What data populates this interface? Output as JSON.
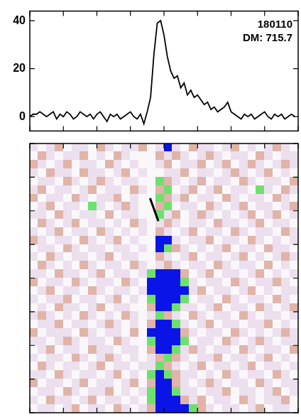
{
  "chart_data": [
    {
      "type": "line",
      "title": "180110",
      "subtitle": "DM: 715.7",
      "color": "#000000",
      "x": [
        0,
        1,
        2,
        3,
        4,
        5,
        6,
        7,
        8,
        9,
        10,
        11,
        12,
        13,
        14,
        15,
        16,
        17,
        18,
        19,
        20,
        21,
        22,
        23,
        24,
        25,
        26,
        27,
        28,
        29,
        30,
        31,
        32,
        33,
        34,
        35,
        36,
        37,
        38,
        39,
        40,
        41,
        42,
        43,
        44,
        45,
        46,
        47,
        48,
        49,
        50,
        51,
        52,
        53,
        54,
        55,
        56,
        57,
        58,
        59,
        60,
        61,
        62,
        63,
        64,
        65,
        66,
        67,
        68,
        69,
        70,
        71,
        72,
        73,
        74,
        75,
        76,
        77,
        78,
        79
      ],
      "values": [
        0,
        1,
        1,
        2,
        1,
        0,
        1,
        2,
        -1,
        1,
        0,
        2,
        1,
        -1,
        0,
        2,
        1,
        0,
        1,
        -1,
        1,
        2,
        0,
        -2,
        1,
        0,
        1,
        -1,
        0,
        1,
        2,
        0,
        -1,
        1,
        -3,
        2,
        8,
        26,
        39,
        40,
        34,
        25,
        19,
        16,
        17,
        12,
        14,
        9,
        11,
        8,
        9,
        7,
        5,
        6,
        3,
        4,
        2,
        3,
        4,
        6,
        2,
        1,
        0,
        -1,
        1,
        0,
        1,
        -1,
        0,
        1,
        2,
        0,
        -1,
        1,
        0,
        1,
        -1,
        0,
        1,
        0
      ],
      "xlim": [
        0,
        80
      ],
      "xticks": [
        0,
        10,
        20,
        30,
        40,
        50,
        60,
        70,
        80
      ],
      "ylim": [
        -6,
        44
      ],
      "yticks": [
        0,
        20,
        40
      ],
      "tick_labels": "y"
    },
    {
      "type": "heatmap",
      "xlim": [
        0,
        80
      ],
      "xticks": [
        0,
        10,
        20,
        30,
        40,
        50,
        60,
        70,
        80
      ],
      "ylim": [
        0,
        32
      ],
      "yticks": [
        0,
        4,
        8,
        12,
        16,
        20,
        24,
        28,
        32
      ],
      "tick_labels": false,
      "cells": [
        [
          1,
          0,
          1,
          2,
          0,
          1,
          1,
          0,
          2,
          1,
          0,
          1,
          1,
          2,
          0,
          1,
          4,
          1,
          0,
          2,
          1,
          1,
          0,
          1,
          2,
          0,
          1,
          0,
          1,
          2,
          1,
          0
        ],
        [
          0,
          2,
          1,
          0,
          1,
          1,
          2,
          0,
          1,
          0,
          2,
          1,
          0,
          0,
          0,
          2,
          1,
          2,
          1,
          0,
          1,
          2,
          1,
          0,
          1,
          1,
          0,
          2,
          1,
          0,
          1,
          1
        ],
        [
          2,
          1,
          0,
          1,
          2,
          0,
          1,
          1,
          0,
          2,
          1,
          0,
          1,
          0,
          0,
          1,
          2,
          0,
          1,
          1,
          2,
          0,
          1,
          2,
          0,
          1,
          2,
          1,
          0,
          1,
          2,
          1
        ],
        [
          1,
          0,
          2,
          1,
          1,
          0,
          2,
          1,
          1,
          0,
          1,
          2,
          0,
          1,
          0,
          0,
          1,
          1,
          2,
          0,
          1,
          1,
          0,
          1,
          2,
          1,
          0,
          1,
          2,
          0,
          1,
          0
        ],
        [
          0,
          1,
          1,
          0,
          2,
          1,
          0,
          1,
          2,
          1,
          0,
          1,
          1,
          0,
          0,
          3,
          2,
          1,
          0,
          1,
          2,
          0,
          1,
          1,
          0,
          2,
          1,
          0,
          1,
          1,
          0,
          2
        ],
        [
          1,
          2,
          0,
          1,
          1,
          0,
          1,
          2,
          0,
          1,
          1,
          0,
          2,
          1,
          0,
          2,
          3,
          0,
          1,
          2,
          0,
          1,
          2,
          0,
          1,
          1,
          0,
          3,
          1,
          0,
          2,
          1
        ],
        [
          2,
          0,
          1,
          1,
          0,
          2,
          1,
          0,
          1,
          1,
          2,
          0,
          1,
          0,
          0,
          3,
          2,
          1,
          2,
          0,
          1,
          1,
          0,
          2,
          1,
          0,
          1,
          1,
          0,
          2,
          1,
          0
        ],
        [
          0,
          1,
          2,
          0,
          1,
          1,
          0,
          3,
          1,
          0,
          1,
          2,
          1,
          0,
          0,
          2,
          3,
          0,
          1,
          1,
          0,
          2,
          1,
          0,
          1,
          2,
          0,
          1,
          1,
          0,
          1,
          2
        ],
        [
          1,
          1,
          0,
          2,
          1,
          0,
          1,
          1,
          0,
          2,
          0,
          1,
          1,
          0,
          0,
          3,
          1,
          2,
          0,
          1,
          2,
          1,
          0,
          1,
          0,
          1,
          2,
          0,
          1,
          2,
          0,
          1
        ],
        [
          0,
          2,
          1,
          0,
          1,
          2,
          0,
          1,
          1,
          0,
          1,
          0,
          2,
          1,
          0,
          1,
          2,
          1,
          0,
          1,
          1,
          0,
          2,
          1,
          1,
          0,
          1,
          2,
          0,
          1,
          1,
          0
        ],
        [
          1,
          0,
          1,
          2,
          0,
          1,
          1,
          0,
          2,
          1,
          0,
          1,
          0,
          1,
          0,
          2,
          1,
          0,
          1,
          2,
          0,
          1,
          1,
          0,
          2,
          1,
          0,
          1,
          1,
          0,
          2,
          1
        ],
        [
          2,
          1,
          0,
          1,
          1,
          0,
          2,
          1,
          0,
          1,
          2,
          0,
          1,
          0,
          0,
          4,
          4,
          1,
          0,
          1,
          1,
          2,
          0,
          1,
          1,
          0,
          2,
          1,
          0,
          1,
          0,
          1
        ],
        [
          0,
          1,
          1,
          0,
          2,
          1,
          0,
          1,
          1,
          0,
          1,
          1,
          0,
          1,
          0,
          4,
          3,
          2,
          1,
          0,
          1,
          0,
          1,
          2,
          0,
          1,
          1,
          0,
          2,
          1,
          1,
          0
        ],
        [
          1,
          0,
          2,
          1,
          0,
          1,
          1,
          0,
          1,
          2,
          0,
          1,
          1,
          0,
          0,
          2,
          1,
          0,
          1,
          2,
          0,
          1,
          1,
          0,
          1,
          2,
          0,
          1,
          0,
          1,
          2,
          1
        ],
        [
          0,
          2,
          1,
          0,
          1,
          0,
          2,
          1,
          0,
          1,
          1,
          0,
          2,
          1,
          0,
          1,
          2,
          1,
          0,
          1,
          1,
          0,
          2,
          1,
          0,
          1,
          1,
          0,
          2,
          0,
          1,
          0
        ],
        [
          1,
          1,
          0,
          2,
          1,
          1,
          0,
          1,
          2,
          0,
          1,
          1,
          0,
          1,
          3,
          4,
          4,
          4,
          2,
          0,
          1,
          2,
          0,
          1,
          1,
          0,
          1,
          2,
          0,
          1,
          0,
          1
        ],
        [
          2,
          0,
          1,
          1,
          0,
          2,
          1,
          0,
          1,
          1,
          0,
          2,
          1,
          0,
          4,
          4,
          4,
          4,
          3,
          1,
          0,
          1,
          1,
          0,
          2,
          1,
          0,
          1,
          1,
          2,
          1,
          0
        ],
        [
          0,
          1,
          2,
          0,
          1,
          1,
          0,
          2,
          1,
          0,
          1,
          1,
          0,
          1,
          4,
          4,
          4,
          4,
          4,
          1,
          2,
          0,
          1,
          1,
          0,
          1,
          2,
          0,
          1,
          0,
          1,
          1
        ],
        [
          1,
          0,
          1,
          1,
          2,
          0,
          1,
          1,
          0,
          1,
          2,
          0,
          1,
          0,
          3,
          4,
          4,
          4,
          3,
          0,
          1,
          1,
          0,
          2,
          1,
          0,
          1,
          1,
          0,
          2,
          1,
          0
        ],
        [
          0,
          1,
          0,
          2,
          1,
          1,
          0,
          1,
          2,
          0,
          1,
          1,
          0,
          0,
          2,
          4,
          4,
          3,
          1,
          1,
          0,
          1,
          2,
          0,
          1,
          1,
          0,
          2,
          1,
          0,
          1,
          2
        ],
        [
          1,
          2,
          1,
          0,
          1,
          0,
          2,
          1,
          0,
          1,
          0,
          2,
          1,
          0,
          1,
          3,
          2,
          1,
          0,
          2,
          1,
          0,
          1,
          1,
          0,
          2,
          1,
          0,
          1,
          1,
          0,
          1
        ],
        [
          0,
          1,
          1,
          2,
          0,
          1,
          1,
          0,
          1,
          2,
          1,
          0,
          1,
          0,
          2,
          4,
          4,
          3,
          1,
          0,
          1,
          2,
          0,
          1,
          1,
          0,
          1,
          1,
          2,
          0,
          1,
          0
        ],
        [
          2,
          0,
          1,
          1,
          1,
          0,
          2,
          1,
          0,
          1,
          1,
          0,
          2,
          0,
          4,
          4,
          4,
          4,
          2,
          1,
          0,
          1,
          1,
          0,
          2,
          1,
          0,
          1,
          0,
          1,
          2,
          1
        ],
        [
          1,
          1,
          0,
          1,
          2,
          1,
          0,
          1,
          1,
          0,
          2,
          1,
          0,
          0,
          3,
          4,
          4,
          4,
          3,
          0,
          1,
          1,
          0,
          2,
          1,
          0,
          1,
          2,
          1,
          0,
          1,
          1
        ],
        [
          0,
          1,
          2,
          0,
          1,
          1,
          0,
          2,
          1,
          1,
          0,
          1,
          1,
          0,
          2,
          4,
          4,
          3,
          1,
          2,
          1,
          0,
          1,
          1,
          0,
          2,
          1,
          0,
          1,
          1,
          0,
          2
        ],
        [
          1,
          0,
          1,
          1,
          0,
          2,
          1,
          0,
          1,
          2,
          1,
          0,
          1,
          0,
          1,
          2,
          3,
          2,
          1,
          0,
          1,
          1,
          2,
          0,
          1,
          1,
          0,
          1,
          2,
          0,
          1,
          0
        ],
        [
          0,
          2,
          1,
          0,
          1,
          1,
          0,
          1,
          2,
          0,
          1,
          1,
          0,
          1,
          1,
          3,
          2,
          1,
          0,
          1,
          2,
          0,
          1,
          1,
          0,
          1,
          2,
          0,
          1,
          1,
          0,
          1
        ],
        [
          1,
          1,
          0,
          2,
          1,
          0,
          1,
          1,
          0,
          1,
          2,
          0,
          1,
          0,
          3,
          4,
          3,
          2,
          1,
          1,
          0,
          1,
          0,
          2,
          1,
          0,
          1,
          1,
          0,
          2,
          1,
          0
        ],
        [
          2,
          0,
          1,
          1,
          0,
          1,
          2,
          0,
          1,
          1,
          0,
          1,
          2,
          0,
          2,
          4,
          4,
          2,
          1,
          0,
          1,
          2,
          1,
          0,
          1,
          1,
          0,
          2,
          1,
          0,
          1,
          1
        ],
        [
          0,
          1,
          1,
          0,
          2,
          1,
          0,
          1,
          1,
          2,
          0,
          1,
          0,
          1,
          3,
          4,
          4,
          3,
          1,
          1,
          0,
          1,
          1,
          2,
          0,
          1,
          1,
          0,
          1,
          2,
          0,
          1
        ],
        [
          1,
          0,
          2,
          1,
          1,
          0,
          1,
          2,
          0,
          1,
          1,
          0,
          1,
          0,
          3,
          4,
          4,
          4,
          2,
          1,
          2,
          0,
          1,
          1,
          0,
          2,
          1,
          0,
          1,
          1,
          2,
          0
        ],
        [
          0,
          1,
          1,
          0,
          1,
          2,
          0,
          1,
          1,
          0,
          2,
          1,
          0,
          1,
          2,
          4,
          4,
          4,
          4,
          3,
          2,
          1,
          0,
          1,
          1,
          0,
          1,
          2,
          0,
          1,
          1,
          0
        ]
      ]
    }
  ]
}
